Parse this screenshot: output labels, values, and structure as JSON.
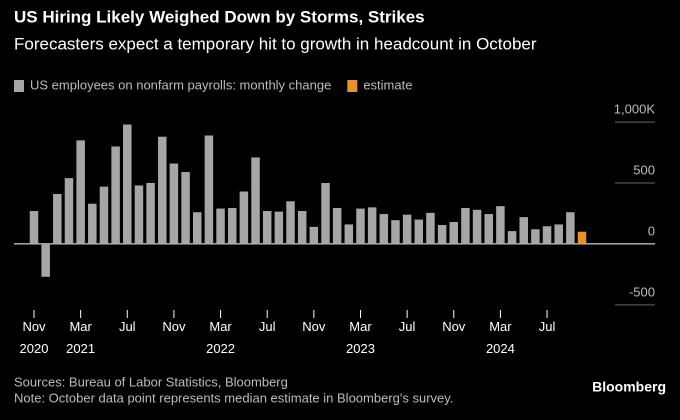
{
  "chart_data": {
    "type": "bar",
    "title": "US Hiring Likely Weighed Down by Storms, Strikes",
    "subtitle": "Forecasters expect a temporary hit to growth in headcount in October",
    "categories": [
      "Nov\n2020",
      null,
      null,
      null,
      "Mar\n2021",
      null,
      null,
      null,
      "Jul",
      null,
      null,
      null,
      "Nov",
      null,
      null,
      null,
      "Mar\n2022",
      null,
      null,
      null,
      "Jul",
      null,
      null,
      null,
      "Nov",
      null,
      null,
      null,
      "Mar\n2023",
      null,
      null,
      null,
      "Jul",
      null,
      null,
      null,
      "Nov",
      null,
      null,
      null,
      "Mar\n2024",
      null,
      null,
      null,
      "Jul",
      null,
      null,
      null
    ],
    "series": [
      {
        "name": "US employees on nonfarm payrolls: monthly change",
        "color": "#a6a6a6",
        "values": [
          270,
          -270,
          410,
          540,
          850,
          330,
          470,
          800,
          980,
          480,
          500,
          880,
          660,
          590,
          260,
          890,
          290,
          295,
          430,
          710,
          270,
          265,
          350,
          270,
          140,
          500,
          295,
          160,
          290,
          300,
          245,
          195,
          240,
          200,
          255,
          155,
          180,
          295,
          280,
          245,
          310,
          105,
          220,
          120,
          145,
          160,
          260,
          null
        ]
      },
      {
        "name": "estimate",
        "color": "#e8912d",
        "values": [
          null,
          null,
          null,
          null,
          null,
          null,
          null,
          null,
          null,
          null,
          null,
          null,
          null,
          null,
          null,
          null,
          null,
          null,
          null,
          null,
          null,
          null,
          null,
          null,
          null,
          null,
          null,
          null,
          null,
          null,
          null,
          null,
          null,
          null,
          null,
          null,
          null,
          null,
          null,
          null,
          null,
          null,
          null,
          null,
          null,
          null,
          null,
          100
        ]
      }
    ],
    "ylim": [
      -600,
      1050
    ],
    "yticks": [
      {
        "value": 1000,
        "label": "1,000K"
      },
      500,
      0,
      -500
    ],
    "source": "Sources: Bureau of Labor Statistics, Bloomberg",
    "note": "Note: October data point represents median estimate in Bloomberg's survey.",
    "brand": "Bloomberg"
  }
}
